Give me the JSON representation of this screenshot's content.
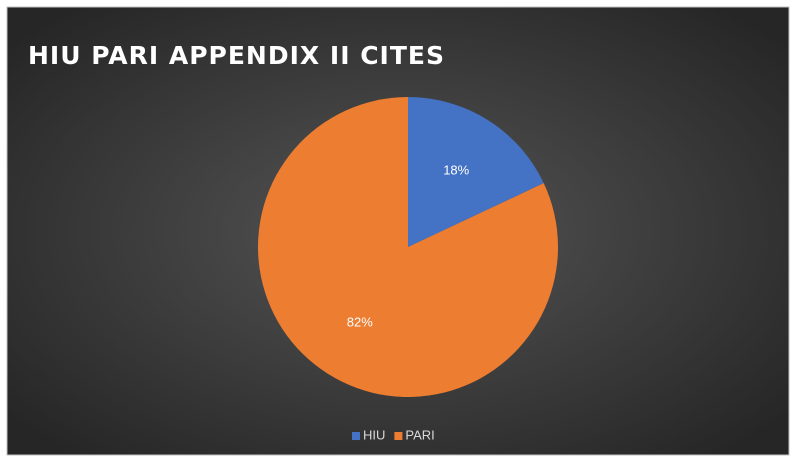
{
  "chart_data": {
    "type": "pie",
    "title": "HIU PARI APPENDIX II CITES",
    "categories": [
      "HIU",
      "PARI"
    ],
    "values": [
      18,
      82
    ],
    "value_labels": [
      "18%",
      "82%"
    ],
    "colors": [
      "#4472c4",
      "#ed7d31"
    ],
    "legend": "bottom"
  }
}
